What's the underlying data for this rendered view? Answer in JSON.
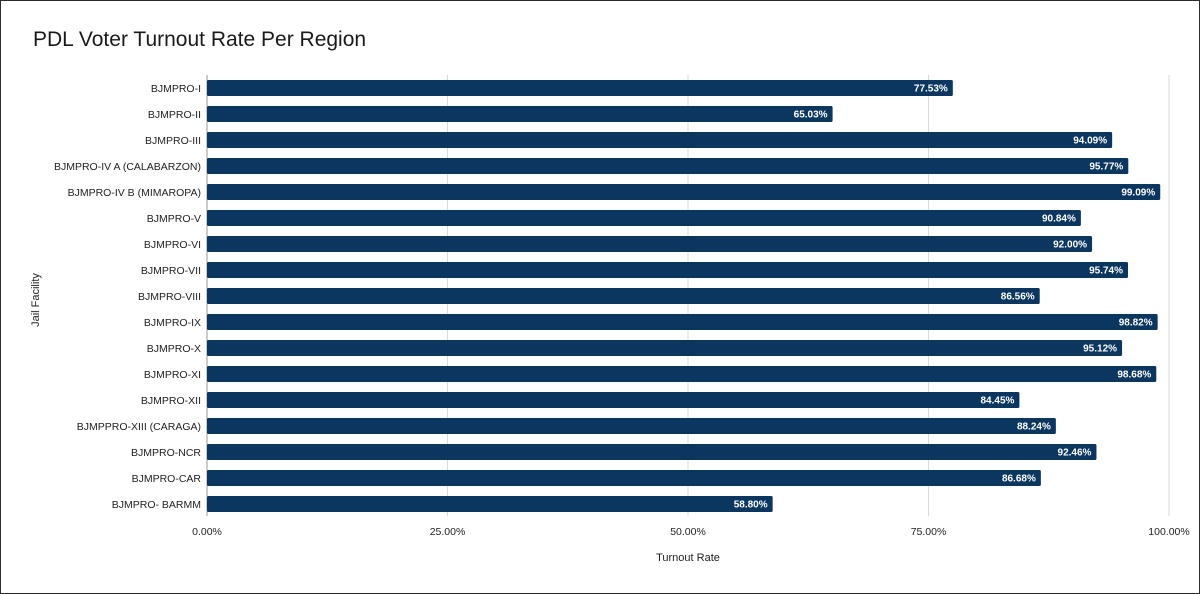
{
  "chart_data": {
    "type": "bar",
    "orientation": "horizontal",
    "title": "PDL Voter Turnout Rate Per Region",
    "xlabel": "Turnout Rate",
    "ylabel": "Jail Facility",
    "xlim": [
      0,
      100
    ],
    "x_ticks": [
      "0.00%",
      "25.00%",
      "50.00%",
      "75.00%",
      "100.00%"
    ],
    "x_tick_values": [
      0,
      25,
      50,
      75,
      100
    ],
    "grid": true,
    "bar_color": "#0b3660",
    "categories": [
      "BJMPRO-I",
      "BJMPRO-II",
      "BJMPRO-III",
      "BJMPRO-IV A (CALABARZON)",
      "BJMPRO-IV B (MIMAROPA)",
      "BJMPRO-V",
      "BJMPRO-VI",
      "BJMPRO-VII",
      "BJMPRO-VIII",
      "BJMPRO-IX",
      "BJMPRO-X",
      "BJMPRO-XI",
      "BJMPRO-XII",
      "BJMPPRO-XIII (CARAGA)",
      "BJMPRO-NCR",
      "BJMPRO-CAR",
      "BJMPRO- BARMM"
    ],
    "values": [
      77.53,
      65.03,
      94.09,
      95.77,
      99.09,
      90.84,
      92.0,
      95.74,
      86.56,
      98.82,
      95.12,
      98.68,
      84.45,
      88.24,
      92.46,
      86.68,
      58.8
    ],
    "data_labels": [
      "77.53%",
      "65.03%",
      "94.09%",
      "95.77%",
      "99.09%",
      "90.84%",
      "92.00%",
      "95.74%",
      "86.56%",
      "98.82%",
      "95.12%",
      "98.68%",
      "84.45%",
      "88.24%",
      "92.46%",
      "86.68%",
      "58.80%"
    ]
  }
}
